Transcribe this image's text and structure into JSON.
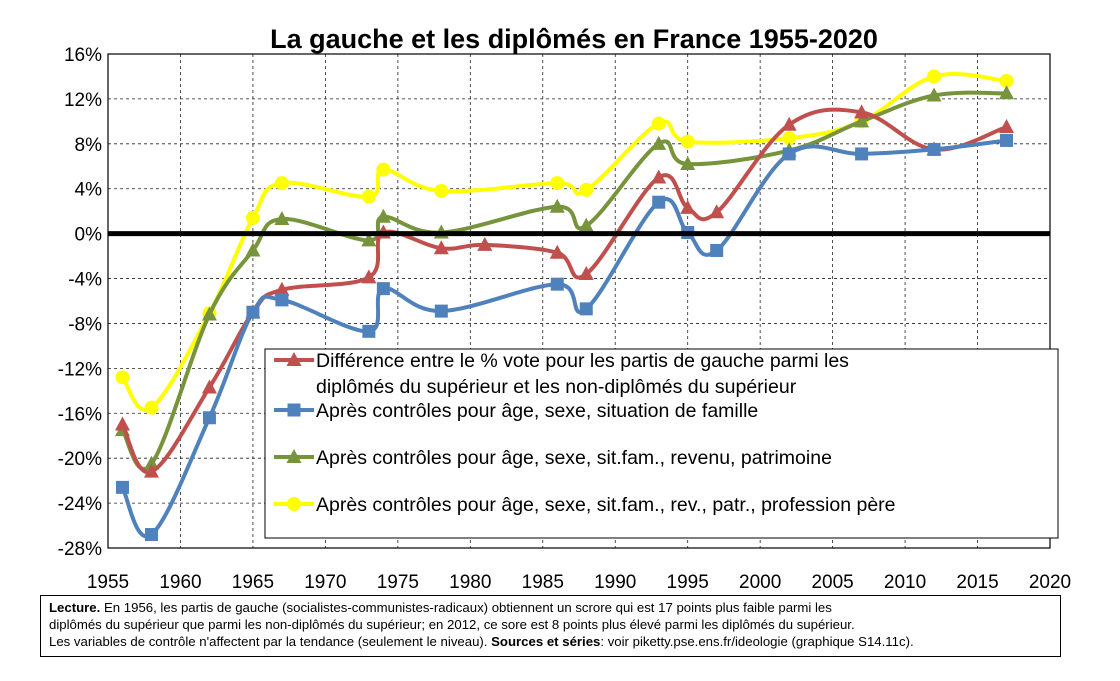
{
  "chart_data": {
    "type": "line",
    "title": "La gauche et les diplômés en France 1955-2020",
    "xlabel": "",
    "ylabel": "",
    "xlim": [
      1955,
      2020
    ],
    "ylim": [
      -28,
      16
    ],
    "x_ticks": [
      "1955",
      "1960",
      "1965",
      "1970",
      "1975",
      "1980",
      "1985",
      "1990",
      "1995",
      "2000",
      "2005",
      "2010",
      "2015",
      "2020"
    ],
    "y_ticks": [
      "16%",
      "12%",
      "8%",
      "4%",
      "0%",
      "-4%",
      "-8%",
      "-12%",
      "-16%",
      "-20%",
      "-24%",
      "-28%"
    ],
    "grid": true,
    "legend_position": "bottom-right",
    "series": [
      {
        "name": "Différence entre le % vote pour les partis de gauche parmi les diplômés du supérieur et les non-diplômés du supérieur",
        "color": "#c0504d",
        "marker": "triangle",
        "legend_lines": [
          "Différence entre le % vote pour les partis de gauche parmi les",
          "diplômés du supérieur et les non-diplômés du supérieur"
        ],
        "points": [
          [
            1956,
            -17.0
          ],
          [
            1958,
            -21.2
          ],
          [
            1962,
            -13.7
          ],
          [
            1965,
            -7.0
          ],
          [
            1967,
            -5.0
          ],
          [
            1973,
            -3.9
          ],
          [
            1974,
            0.1
          ],
          [
            1978,
            -1.3
          ],
          [
            1981,
            -1.0
          ],
          [
            1986,
            -1.7
          ],
          [
            1988,
            -3.6
          ],
          [
            1993,
            5.0
          ],
          [
            1995,
            2.3
          ],
          [
            1997,
            1.9
          ],
          [
            2002,
            9.7
          ],
          [
            2007,
            10.8
          ],
          [
            2012,
            7.5
          ],
          [
            2017,
            9.5
          ]
        ]
      },
      {
        "name": "Après contrôles pour âge, sexe, situation de famille",
        "color": "#4f81bd",
        "marker": "square",
        "legend_lines": [
          "Après contrôles pour âge, sexe, situation de famille"
        ],
        "points": [
          [
            1956,
            -22.6
          ],
          [
            1958,
            -26.8
          ],
          [
            1962,
            -16.4
          ],
          [
            1965,
            -7.0
          ],
          [
            1967,
            -5.9
          ],
          [
            1973,
            -8.7
          ],
          [
            1974,
            -4.9
          ],
          [
            1978,
            -6.9
          ],
          [
            1986,
            -4.5
          ],
          [
            1988,
            -6.7
          ],
          [
            1993,
            2.8
          ],
          [
            1995,
            0.1
          ],
          [
            1997,
            -1.5
          ],
          [
            2002,
            7.1
          ],
          [
            2007,
            7.1
          ],
          [
            2012,
            7.5
          ],
          [
            2017,
            8.3
          ]
        ]
      },
      {
        "name": "Après contrôles pour âge, sexe, sit.fam., revenu, patrimoine",
        "color": "#77933c",
        "marker": "triangle",
        "legend_lines": [
          "Après contrôles pour âge, sexe, sit.fam., revenu, patrimoine"
        ],
        "points": [
          [
            1956,
            -17.5
          ],
          [
            1958,
            -20.5
          ],
          [
            1962,
            -7.2
          ],
          [
            1965,
            -1.5
          ],
          [
            1967,
            1.3
          ],
          [
            1973,
            -0.6
          ],
          [
            1974,
            1.5
          ],
          [
            1978,
            0.1
          ],
          [
            1986,
            2.4
          ],
          [
            1988,
            0.7
          ],
          [
            1993,
            8.0
          ],
          [
            1995,
            6.2
          ],
          [
            2002,
            7.4
          ],
          [
            2007,
            10.0
          ],
          [
            2012,
            12.3
          ],
          [
            2017,
            12.5
          ]
        ]
      },
      {
        "name": "Après contrôles pour âge, sexe, sit.fam., rev., patr., profession père",
        "color": "#ffff00",
        "marker": "circle",
        "legend_lines": [
          "Après contrôles pour âge, sexe, sit.fam., rev., patr., profession père"
        ],
        "points": [
          [
            1956,
            -12.8
          ],
          [
            1958,
            -15.5
          ],
          [
            1962,
            -7.1
          ],
          [
            1965,
            1.4
          ],
          [
            1967,
            4.5
          ],
          [
            1973,
            3.3
          ],
          [
            1974,
            5.7
          ],
          [
            1978,
            3.8
          ],
          [
            1986,
            4.5
          ],
          [
            1988,
            3.9
          ],
          [
            1993,
            9.8
          ],
          [
            1995,
            8.2
          ],
          [
            2002,
            8.5
          ],
          [
            2007,
            10.0
          ],
          [
            2012,
            14.0
          ],
          [
            2017,
            13.6
          ]
        ]
      }
    ]
  },
  "note": {
    "lecture_label": "Lecture.",
    "line1_rest": " En 1956, les partis de gauche (socialistes-communistes-radicaux) obtiennent un scrore qui est 17 points plus faible parmi les",
    "line2": "diplômés du supérieur que parmi les non-diplômés du supérieur; en 2012, ce sore est 8 points plus élevé parmi les diplômés du supérieur.",
    "line3_start": "Les variables de contrôle n'affectent par la tendance (seulement le niveau). ",
    "sources_label": "Sources et séries",
    "line3_end": ": voir piketty.pse.ens.fr/ideologie (graphique S14.11c)."
  }
}
